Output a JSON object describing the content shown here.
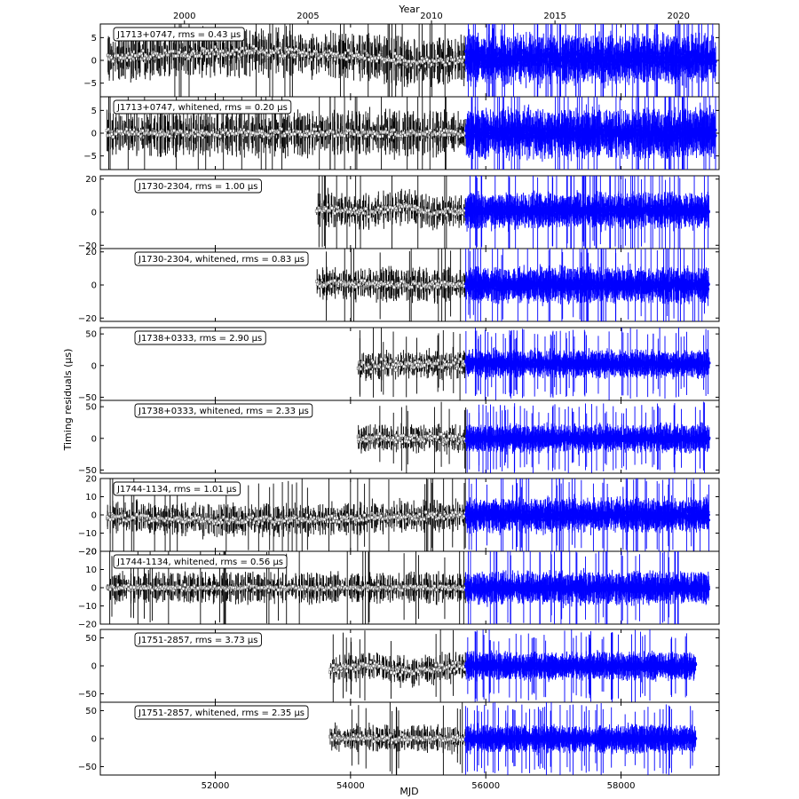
{
  "chart_data": {
    "type": "scatter",
    "xlabel": "MJD",
    "top_axis_label": "Year",
    "ylabel": "Timing residuals (μs)",
    "xlim": [
      50300,
      59450
    ],
    "x_ticks": [
      52000,
      54000,
      56000,
      58000
    ],
    "year_ticks": [
      {
        "label": "2000",
        "mjd": 51544
      },
      {
        "label": "2005",
        "mjd": 53371
      },
      {
        "label": "2010",
        "mjd": 55197
      },
      {
        "label": "2020",
        "mjd": 58849
      },
      {
        "label": "2015",
        "mjd": 57023
      }
    ],
    "colors": {
      "early": "#000000",
      "early_fill": "#ffffff",
      "late": "#0000ff"
    },
    "pulsars": [
      {
        "name": "J1713+0747",
        "ylim": [
          -8,
          8
        ],
        "yticks": [
          -5,
          0,
          5
        ],
        "panels": [
          {
            "label": "J1713+0747, rms = 0.43 μs",
            "start_mjd": 50400,
            "split_mjd": 55700,
            "end_mjd": 59400,
            "trend": [
              [
                50400,
                0.5
              ],
              [
                51500,
                1.5
              ],
              [
                52500,
                2.0
              ],
              [
                54000,
                1.0
              ],
              [
                55000,
                -0.5
              ],
              [
                55700,
                0.3
              ]
            ],
            "spread_early": 0.8,
            "spread_late": 1.2,
            "err": 3.0
          },
          {
            "label": "J1713+0747, whitened, rms = 0.20 μs",
            "start_mjd": 50400,
            "split_mjd": 55700,
            "end_mjd": 59400,
            "trend": [
              [
                50400,
                0.0
              ],
              [
                55700,
                0.0
              ]
            ],
            "spread_early": 0.6,
            "spread_late": 1.0,
            "err": 3.0
          }
        ]
      },
      {
        "name": "J1730-2304",
        "ylim": [
          -22,
          22
        ],
        "yticks": [
          -20,
          0,
          20
        ],
        "panels": [
          {
            "label": "J1730-2304, rms = 1.00 μs",
            "start_mjd": 53500,
            "split_mjd": 55700,
            "end_mjd": 59300,
            "trend": [
              [
                53500,
                2
              ],
              [
                54300,
                0
              ],
              [
                54800,
                4
              ],
              [
                55200,
                -1
              ],
              [
                55700,
                1
              ]
            ],
            "spread_early": 1.5,
            "spread_late": 2.0,
            "err": 6.0
          },
          {
            "label": "J1730-2304, whitened, rms = 0.83 μs",
            "start_mjd": 53500,
            "split_mjd": 55700,
            "end_mjd": 59300,
            "trend": [
              [
                53500,
                1
              ],
              [
                55700,
                0
              ]
            ],
            "spread_early": 1.5,
            "spread_late": 2.0,
            "err": 6.0
          }
        ]
      },
      {
        "name": "J1738+0333",
        "ylim": [
          -55,
          60
        ],
        "yticks": [
          -50,
          0,
          50
        ],
        "panels": [
          {
            "label": "J1738+0333, rms = 2.90 μs",
            "start_mjd": 54100,
            "split_mjd": 55700,
            "end_mjd": 59300,
            "trend": [
              [
                54100,
                0
              ],
              [
                55700,
                3
              ]
            ],
            "spread_early": 6,
            "spread_late": 4,
            "err": 12
          },
          {
            "label": "J1738+0333, whitened, rms = 2.33 μs",
            "start_mjd": 54100,
            "split_mjd": 55700,
            "end_mjd": 59300,
            "trend": [
              [
                54100,
                0
              ],
              [
                55700,
                0
              ]
            ],
            "spread_early": 5,
            "spread_late": 4,
            "err": 12
          }
        ]
      },
      {
        "name": "J1744-1134",
        "ylim": [
          -20,
          20
        ],
        "yticks": [
          -20,
          -10,
          0,
          10,
          20
        ],
        "panels": [
          {
            "label": "J1744-1134, rms = 1.01 μs",
            "start_mjd": 50400,
            "split_mjd": 55700,
            "end_mjd": 59300,
            "trend": [
              [
                50400,
                -1
              ],
              [
                52000,
                -3
              ],
              [
                54000,
                -2
              ],
              [
                55700,
                0
              ]
            ],
            "spread_early": 1.5,
            "spread_late": 2.0,
            "err": 5.0
          },
          {
            "label": "J1744-1134, whitened, rms = 0.56 μs",
            "start_mjd": 50400,
            "split_mjd": 55700,
            "end_mjd": 59300,
            "trend": [
              [
                50400,
                0
              ],
              [
                55700,
                0
              ]
            ],
            "spread_early": 1.0,
            "spread_late": 1.5,
            "err": 5.0
          }
        ]
      },
      {
        "name": "J1751-2857",
        "ylim": [
          -65,
          65
        ],
        "yticks": [
          -50,
          0,
          50
        ],
        "panels": [
          {
            "label": "J1751-2857, rms = 3.73 μs",
            "start_mjd": 53700,
            "split_mjd": 55700,
            "end_mjd": 59100,
            "trend": [
              [
                53700,
                -5
              ],
              [
                54300,
                2
              ],
              [
                54800,
                -10
              ],
              [
                55700,
                0
              ]
            ],
            "spread_early": 5,
            "spread_late": 4,
            "err": 14
          },
          {
            "label": "J1751-2857, whitened, rms = 2.35 μs",
            "start_mjd": 53700,
            "split_mjd": 55700,
            "end_mjd": 59100,
            "trend": [
              [
                53700,
                0
              ],
              [
                55700,
                0
              ]
            ],
            "spread_early": 4,
            "spread_late": 4,
            "err": 14
          }
        ]
      }
    ]
  }
}
